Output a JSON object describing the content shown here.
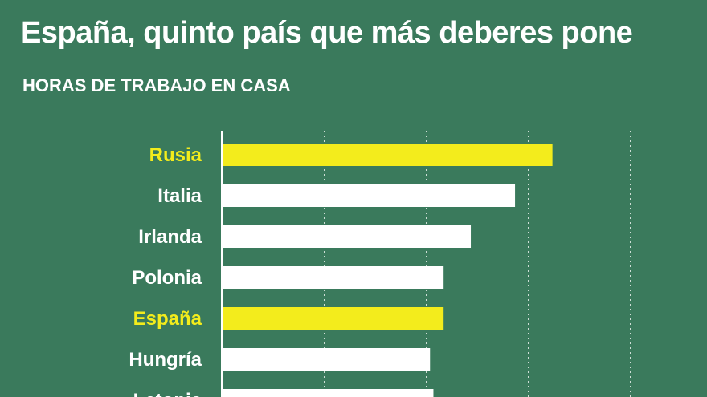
{
  "chart_data": {
    "type": "bar",
    "orientation": "horizontal",
    "title": "España, quinto país que más deberes pone",
    "subtitle": "HORAS DE TRABAJO EN CASA",
    "categories": [
      "Rusia",
      "Italia",
      "Irlanda",
      "Polonia",
      "España",
      "Hungría",
      "Letonia"
    ],
    "values": [
      9.7,
      8.6,
      7.3,
      6.5,
      6.5,
      6.1,
      6.2
    ],
    "highlighted": [
      "Rusia",
      "España"
    ],
    "xlim": [
      0,
      12
    ],
    "grid": true,
    "colors": {
      "background": "#3a7a5c",
      "bar": "#ffffff",
      "highlight": "#f3ec1c",
      "text": "#ffffff"
    }
  }
}
